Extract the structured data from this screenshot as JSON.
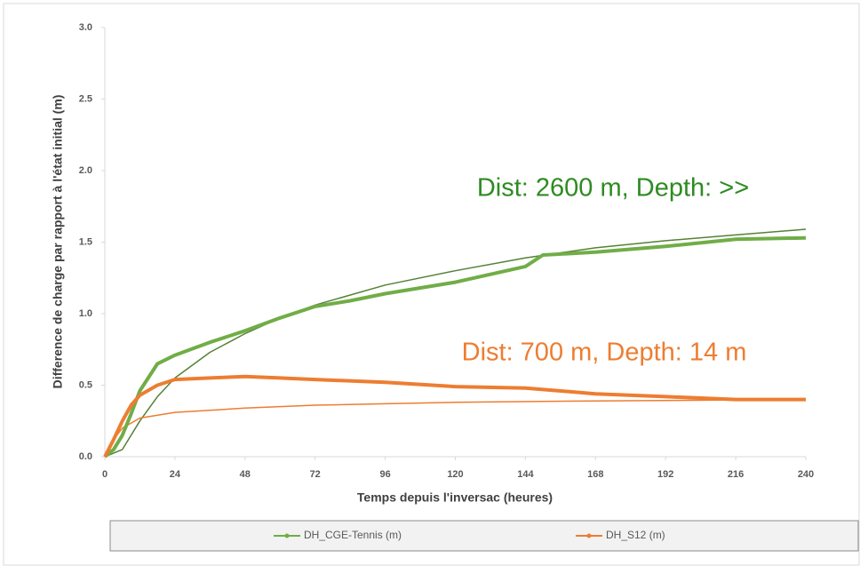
{
  "chart_data": {
    "type": "line",
    "xlabel": "Temps depuis l'inversac (heures)",
    "ylabel": "Difference de charge par rapport à l'état initial (m)",
    "xlim": [
      0,
      240
    ],
    "xticks": [
      0,
      24,
      48,
      72,
      96,
      120,
      144,
      168,
      192,
      216,
      240
    ],
    "ylim": [
      0,
      3
    ],
    "yticks": [
      {
        "value": 0,
        "label": "0.0"
      },
      0.5,
      {
        "value": 1,
        "label": "1.0"
      },
      1.5,
      {
        "value": 2,
        "label": "2.0"
      },
      2.5,
      {
        "value": 3,
        "label": "3.0"
      }
    ],
    "grid": false,
    "series": [
      {
        "name": "DH_CGE-Tennis (m)",
        "color": "#70ad47",
        "width": 4,
        "x": [
          0,
          3,
          6,
          9,
          12,
          18,
          24,
          36,
          48,
          60,
          72,
          84,
          96,
          120,
          144,
          150,
          168,
          192,
          216,
          240
        ],
        "values": [
          0,
          0.05,
          0.15,
          0.3,
          0.46,
          0.65,
          0.71,
          0.8,
          0.88,
          0.97,
          1.05,
          1.09,
          1.14,
          1.22,
          1.33,
          1.41,
          1.43,
          1.47,
          1.52,
          1.53
        ]
      },
      {
        "name": "DH_S12 (m)",
        "color": "#ed7d31",
        "width": 4,
        "x": [
          0,
          3,
          6,
          9,
          12,
          18,
          24,
          36,
          48,
          60,
          72,
          96,
          120,
          144,
          168,
          192,
          216,
          240
        ],
        "values": [
          0,
          0.12,
          0.25,
          0.36,
          0.43,
          0.5,
          0.54,
          0.55,
          0.56,
          0.55,
          0.54,
          0.52,
          0.49,
          0.48,
          0.44,
          0.42,
          0.4,
          0.4
        ]
      },
      {
        "color": "#548235",
        "width": 1.5,
        "x": [
          0,
          6,
          12,
          18,
          24,
          36,
          48,
          60,
          72,
          96,
          120,
          144,
          168,
          192,
          216,
          240
        ],
        "values": [
          0,
          0.05,
          0.25,
          0.42,
          0.55,
          0.73,
          0.86,
          0.97,
          1.06,
          1.2,
          1.3,
          1.39,
          1.46,
          1.51,
          1.55,
          1.59
        ]
      },
      {
        "color": "#ed7d31",
        "width": 1.5,
        "x": [
          0,
          3,
          6,
          12,
          24,
          48,
          72,
          96,
          120,
          168,
          240
        ],
        "values": [
          0,
          0.12,
          0.2,
          0.27,
          0.31,
          0.34,
          0.36,
          0.37,
          0.38,
          0.39,
          0.4
        ]
      }
    ],
    "annotations": [
      {
        "text": "Dist: 2600 m, Depth: >>",
        "color": "#2e8b22"
      },
      {
        "text": "Dist: 700 m, Depth: 14 m",
        "color": "#ed7d31"
      }
    ]
  }
}
